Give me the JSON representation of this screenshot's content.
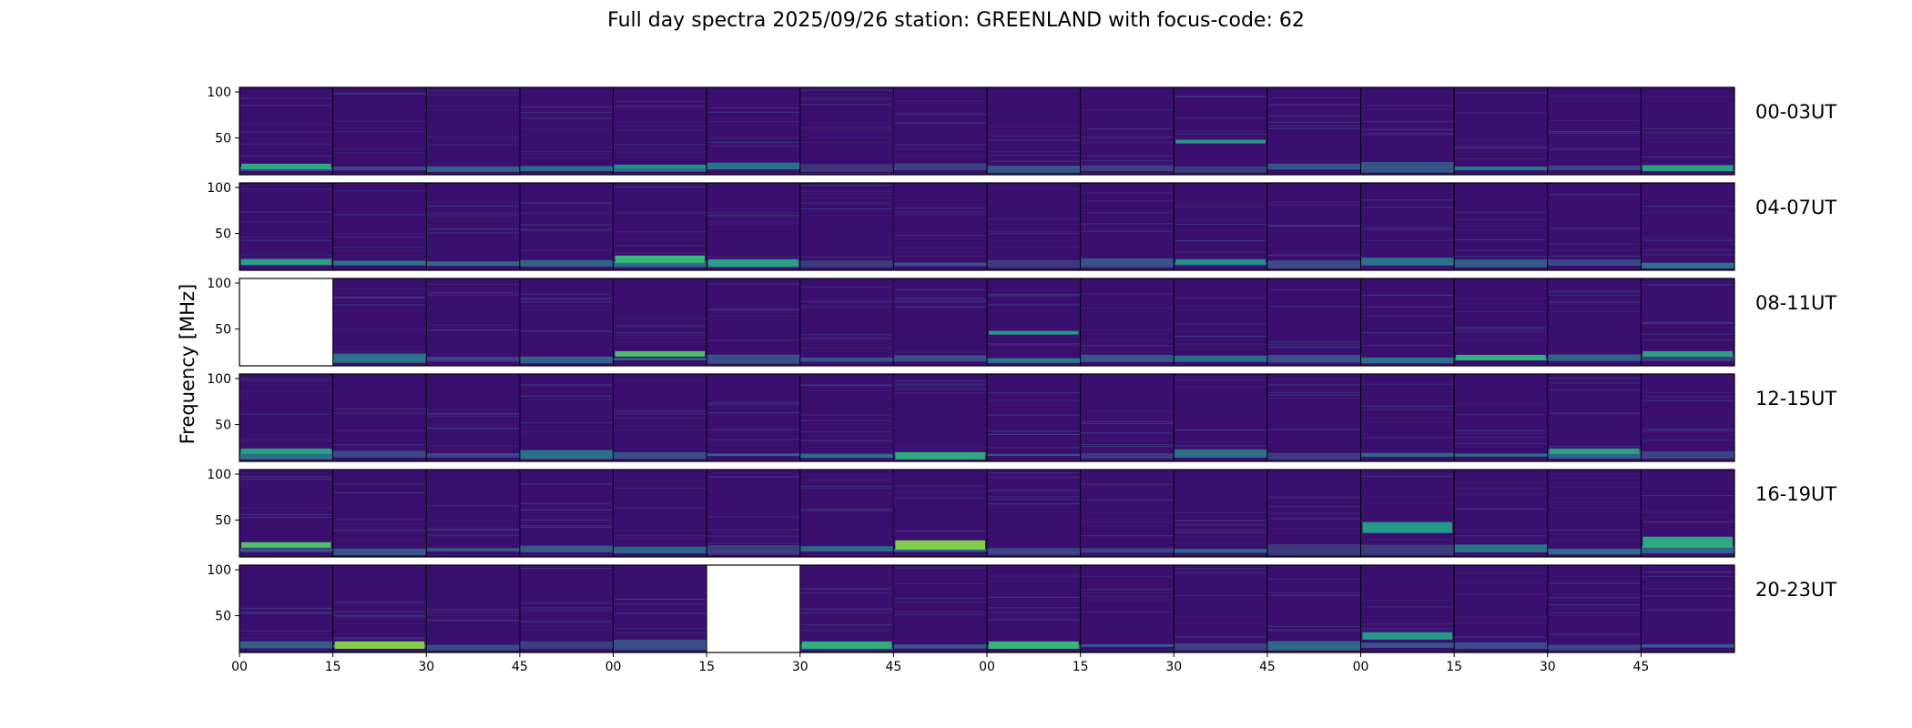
{
  "colors": {
    "background": "#ffffff",
    "panel_base": "#3b0f70",
    "viridis_low": "#440154",
    "viridis_mid": "#31688e",
    "viridis_high": "#35b779",
    "viridis_peak": "#b5de2b",
    "frame": "#000000"
  },
  "chart_data": {
    "type": "heatmap",
    "title": "Full day spectra 2025/09/26 station: GREENLAND with focus-code: 62",
    "ylabel": "Frequency [MHz]",
    "xlabel": "",
    "ylim": [
      10,
      105
    ],
    "yticks": [
      "100",
      "50"
    ],
    "ytick_values": [
      100,
      50
    ],
    "xticks": [
      "00",
      "15",
      "30",
      "45",
      "00",
      "15",
      "30",
      "45",
      "00",
      "15",
      "30",
      "45",
      "00",
      "15",
      "30",
      "45"
    ],
    "minutes_per_panel": 15,
    "panels_per_row": 16,
    "rows": [
      {
        "label": "00-03UT",
        "missing": [],
        "features": [
          {
            "panel": 0,
            "freq": [
              16,
              22
            ],
            "level": 0.65
          },
          {
            "panel": 4,
            "freq": [
              17,
              21
            ],
            "level": 0.5
          },
          {
            "panel": 10,
            "freq": [
              44,
              48
            ],
            "level": 0.55
          },
          {
            "panel": 15,
            "freq": [
              14,
              20
            ],
            "level": 0.6
          }
        ]
      },
      {
        "label": "04-07UT",
        "missing": [],
        "features": [
          {
            "panel": 0,
            "freq": [
              16,
              22
            ],
            "level": 0.6
          },
          {
            "panel": 4,
            "freq": [
              18,
              26
            ],
            "level": 0.75
          },
          {
            "panel": 5,
            "freq": [
              14,
              22
            ],
            "level": 0.6
          },
          {
            "panel": 10,
            "freq": [
              16,
              22
            ],
            "level": 0.5
          }
        ]
      },
      {
        "label": "08-11UT",
        "missing": [
          0
        ],
        "features": [
          {
            "panel": 4,
            "freq": [
              20,
              26
            ],
            "level": 0.8
          },
          {
            "panel": 8,
            "freq": [
              44,
              48
            ],
            "level": 0.55
          },
          {
            "panel": 13,
            "freq": [
              16,
              22
            ],
            "level": 0.7
          },
          {
            "panel": 15,
            "freq": [
              20,
              26
            ],
            "level": 0.6
          }
        ]
      },
      {
        "label": "12-15UT",
        "missing": [],
        "features": [
          {
            "panel": 0,
            "freq": [
              18,
              24
            ],
            "level": 0.6
          },
          {
            "panel": 7,
            "freq": [
              12,
              20
            ],
            "level": 0.65
          },
          {
            "panel": 14,
            "freq": [
              18,
              24
            ],
            "level": 0.6
          }
        ]
      },
      {
        "label": "16-19UT",
        "missing": [],
        "features": [
          {
            "panel": 0,
            "freq": [
              20,
              26
            ],
            "level": 0.8
          },
          {
            "panel": 7,
            "freq": [
              18,
              28
            ],
            "level": 0.9
          },
          {
            "panel": 12,
            "freq": [
              36,
              48
            ],
            "level": 0.55
          },
          {
            "panel": 15,
            "freq": [
              20,
              32
            ],
            "level": 0.65
          }
        ]
      },
      {
        "label": "20-23UT",
        "missing": [
          5
        ],
        "features": [
          {
            "panel": 1,
            "freq": [
              14,
              22
            ],
            "level": 0.9
          },
          {
            "panel": 6,
            "freq": [
              14,
              22
            ],
            "level": 0.7
          },
          {
            "panel": 8,
            "freq": [
              14,
              22
            ],
            "level": 0.75
          },
          {
            "panel": 12,
            "freq": [
              24,
              32
            ],
            "level": 0.55
          }
        ]
      }
    ]
  }
}
